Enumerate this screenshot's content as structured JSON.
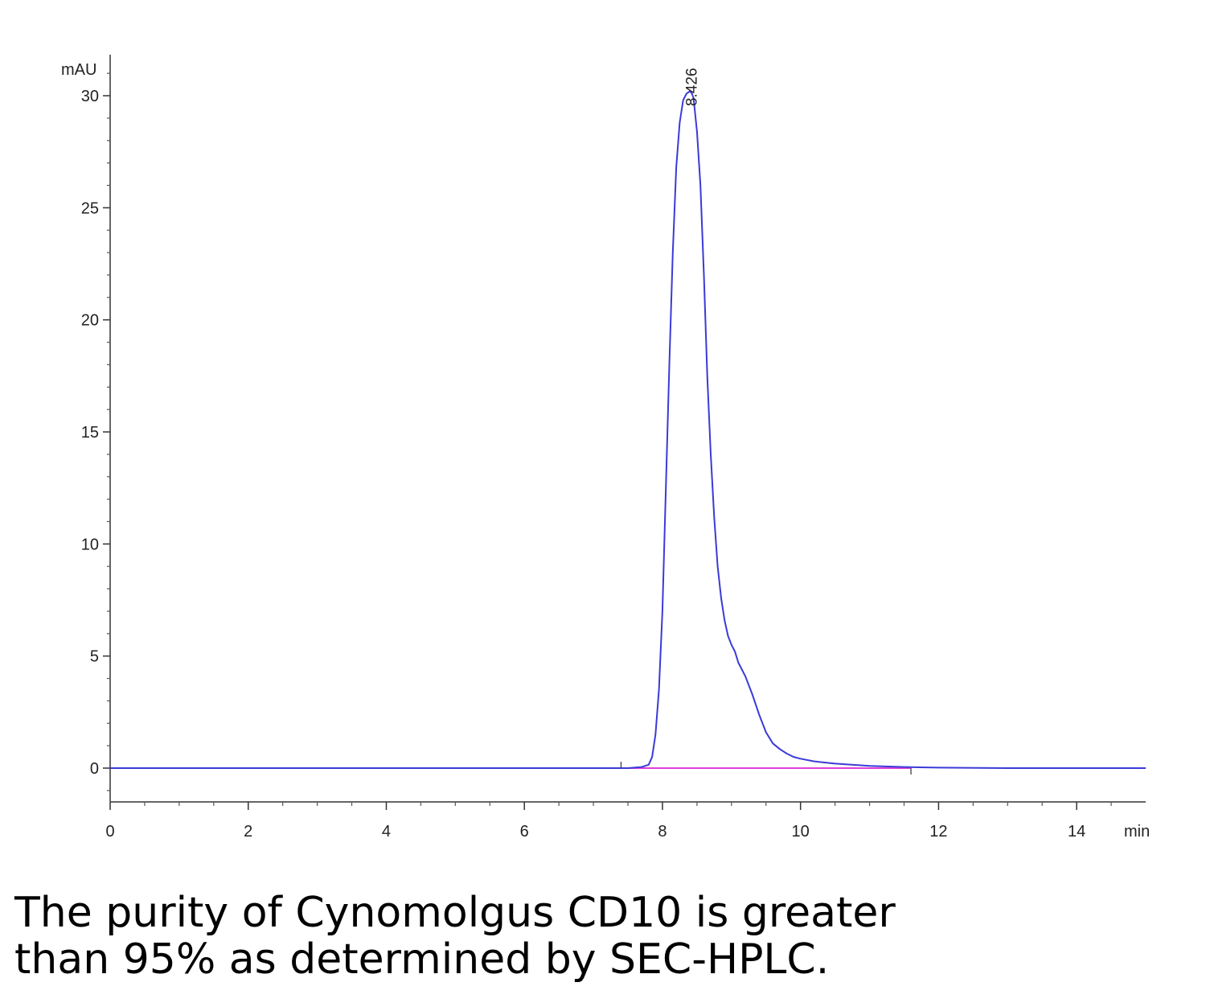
{
  "chart_data": {
    "type": "line",
    "xlabel": "min",
    "ylabel": "mAU",
    "xlim": [
      0,
      15
    ],
    "ylim": [
      -1.5,
      31.5
    ],
    "xticks": [
      0,
      2,
      4,
      6,
      8,
      10,
      12,
      14
    ],
    "yticks": [
      0,
      5,
      10,
      15,
      20,
      25,
      30
    ],
    "peak_label": "8.426",
    "series": [
      {
        "color": "#3a3ad8",
        "x": [
          0,
          2,
          4,
          6,
          7,
          7.5,
          7.7,
          7.8,
          7.85,
          7.9,
          7.95,
          8.0,
          8.05,
          8.1,
          8.15,
          8.2,
          8.25,
          8.3,
          8.35,
          8.4,
          8.426,
          8.45,
          8.5,
          8.55,
          8.6,
          8.65,
          8.7,
          8.75,
          8.8,
          8.85,
          8.9,
          8.95,
          9.0,
          9.05,
          9.1,
          9.2,
          9.3,
          9.4,
          9.5,
          9.6,
          9.7,
          9.8,
          9.9,
          10.0,
          10.2,
          10.5,
          11.0,
          11.5,
          12.0,
          13.0,
          14.0,
          15.0
        ],
        "y": [
          0,
          0,
          0,
          0,
          0,
          0,
          0.05,
          0.15,
          0.5,
          1.5,
          3.5,
          7.0,
          12.5,
          18.0,
          23.0,
          26.8,
          28.8,
          29.8,
          30.1,
          30.2,
          30.1,
          29.9,
          28.4,
          26.0,
          22.0,
          17.5,
          14.0,
          11.2,
          9.0,
          7.6,
          6.6,
          5.9,
          5.5,
          5.2,
          4.7,
          4.1,
          3.3,
          2.4,
          1.6,
          1.1,
          0.85,
          0.65,
          0.5,
          0.42,
          0.3,
          0.2,
          0.1,
          0.05,
          0.02,
          0,
          0,
          0
        ]
      },
      {
        "color": "#e040d8",
        "x": [
          7.4,
          11.6
        ],
        "y": [
          0,
          0
        ]
      }
    ]
  },
  "caption": {
    "line1": "The purity of Cynomolgus CD10 is greater",
    "line2": "than 95% as determined by SEC-HPLC."
  }
}
